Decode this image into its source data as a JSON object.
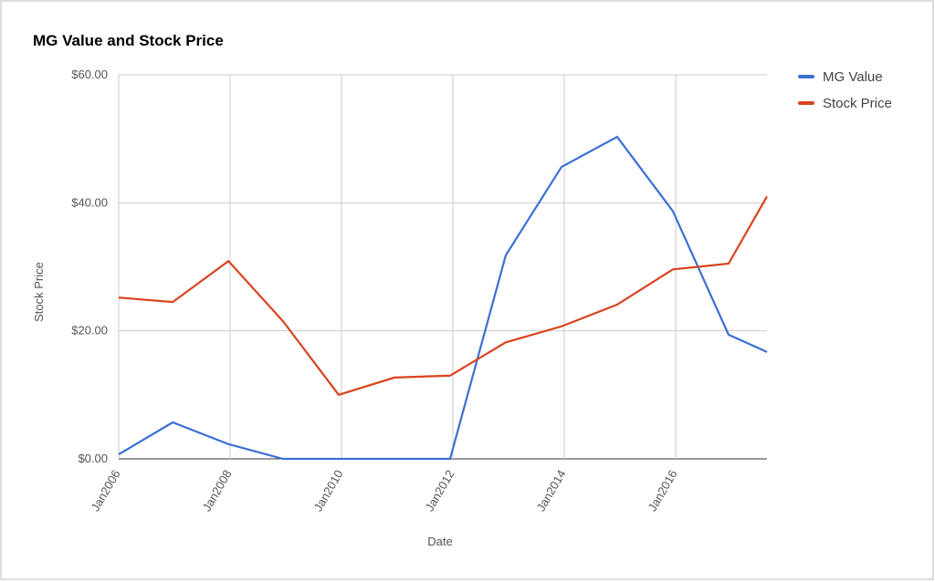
{
  "chart_data": {
    "type": "line",
    "title": "MG Value and Stock Price",
    "x_label": "Date",
    "y_label": "Stock Price",
    "x": [
      2006.0,
      2006.97,
      2007.97,
      2008.95,
      2009.95,
      2010.95,
      2011.95,
      2012.95,
      2013.95,
      2014.95,
      2015.95,
      2016.95,
      2017.64
    ],
    "series": [
      {
        "name": "MG Value",
        "color": "#3b6fd4",
        "values": [
          0.7,
          5.7,
          2.3,
          0,
          0,
          0,
          0,
          31.8,
          45.6,
          50.3,
          38.7,
          19.4,
          16.7
        ]
      },
      {
        "name": "Stock Price",
        "color": "#d9431e",
        "values": [
          25.2,
          24.5,
          30.9,
          21.5,
          10.0,
          12.7,
          13.0,
          18.2,
          20.7,
          24.1,
          29.6,
          30.5,
          41.0
        ]
      }
    ],
    "xlim": [
      2006,
      2017.64
    ],
    "xticks": [
      {
        "value": 2006,
        "label": "Jan2006"
      },
      {
        "value": 2008,
        "label": "Jan2008"
      },
      {
        "value": 2010,
        "label": "Jan2010"
      },
      {
        "value": 2012,
        "label": "Jan2012"
      },
      {
        "value": 2014,
        "label": "Jan2014"
      },
      {
        "value": 2016,
        "label": "Jan2016"
      }
    ],
    "ylim": [
      0,
      60
    ],
    "yticks": [
      {
        "value": 0,
        "label": "$0.00"
      },
      {
        "value": 20,
        "label": "$20.00"
      },
      {
        "value": 40,
        "label": "$40.00"
      },
      {
        "value": 60,
        "label": "$60.00"
      }
    ],
    "grid": true,
    "legend": "right"
  }
}
